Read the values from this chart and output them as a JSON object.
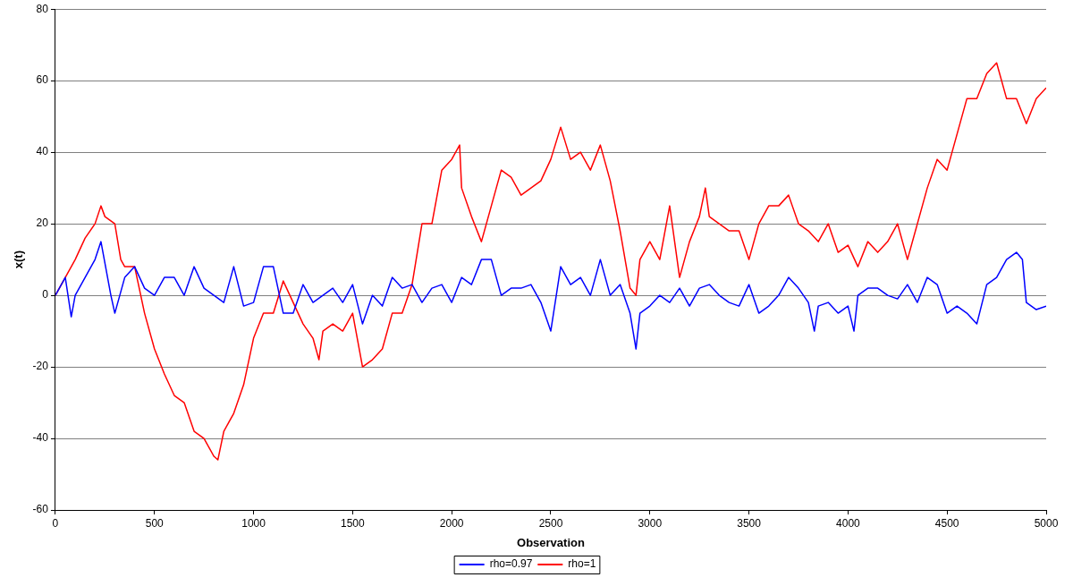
{
  "chart_data": {
    "type": "line",
    "xlabel": "Observation",
    "ylabel": "x(t)",
    "xlim": [
      0,
      5000
    ],
    "xticks": [
      0,
      500,
      1000,
      1500,
      2000,
      2500,
      3000,
      3500,
      4000,
      4500,
      5000
    ],
    "ylim": [
      -60,
      80
    ],
    "yticks": [
      -60,
      -40,
      -20,
      0,
      20,
      40,
      60,
      80
    ],
    "grid": "y",
    "legend": "bottom",
    "marker": "none",
    "line_style": "solid",
    "series": [
      {
        "name": "rho=0.97",
        "color": "#0000ff",
        "x": [
          0,
          50,
          80,
          100,
          150,
          200,
          230,
          280,
          300,
          350,
          400,
          450,
          500,
          550,
          600,
          650,
          700,
          750,
          800,
          850,
          900,
          950,
          1000,
          1050,
          1100,
          1150,
          1200,
          1250,
          1300,
          1350,
          1400,
          1450,
          1500,
          1550,
          1600,
          1650,
          1700,
          1750,
          1800,
          1850,
          1900,
          1950,
          2000,
          2050,
          2100,
          2150,
          2200,
          2250,
          2300,
          2350,
          2400,
          2450,
          2500,
          2550,
          2600,
          2650,
          2700,
          2750,
          2800,
          2850,
          2900,
          2930,
          2950,
          3000,
          3050,
          3100,
          3150,
          3200,
          3250,
          3300,
          3350,
          3400,
          3450,
          3500,
          3550,
          3600,
          3650,
          3700,
          3750,
          3800,
          3830,
          3850,
          3900,
          3950,
          4000,
          4030,
          4050,
          4100,
          4150,
          4200,
          4250,
          4300,
          4350,
          4400,
          4450,
          4500,
          4550,
          4600,
          4650,
          4700,
          4750,
          4800,
          4850,
          4880,
          4900,
          4950,
          5000
        ],
        "values": [
          0,
          5,
          -6,
          0,
          5,
          10,
          15,
          0,
          -5,
          5,
          8,
          2,
          0,
          5,
          5,
          0,
          8,
          2,
          0,
          -2,
          8,
          -3,
          -2,
          8,
          8,
          -5,
          -5,
          3,
          -2,
          0,
          2,
          -2,
          3,
          -8,
          0,
          -3,
          5,
          2,
          3,
          -2,
          2,
          3,
          -2,
          5,
          3,
          10,
          10,
          0,
          2,
          2,
          3,
          -2,
          -10,
          8,
          3,
          5,
          0,
          10,
          0,
          3,
          -5,
          -15,
          -5,
          -3,
          0,
          -2,
          2,
          -3,
          2,
          3,
          0,
          -2,
          -3,
          3,
          -5,
          -3,
          0,
          5,
          2,
          -2,
          -10,
          -3,
          -2,
          -5,
          -3,
          -10,
          0,
          2,
          2,
          0,
          -1,
          3,
          -2,
          5,
          3,
          -5,
          -3,
          -5,
          -8,
          3,
          5,
          10,
          12,
          10,
          -2,
          -4,
          -3
        ]
      },
      {
        "name": "rho=1",
        "color": "#ff0000",
        "x": [
          0,
          50,
          100,
          150,
          200,
          230,
          250,
          300,
          330,
          350,
          400,
          450,
          500,
          550,
          600,
          650,
          700,
          750,
          800,
          820,
          850,
          900,
          950,
          1000,
          1050,
          1100,
          1150,
          1200,
          1250,
          1300,
          1330,
          1350,
          1400,
          1450,
          1500,
          1550,
          1600,
          1650,
          1700,
          1750,
          1800,
          1850,
          1900,
          1950,
          2000,
          2040,
          2050,
          2100,
          2150,
          2200,
          2250,
          2300,
          2350,
          2400,
          2450,
          2500,
          2550,
          2600,
          2650,
          2700,
          2750,
          2800,
          2850,
          2900,
          2930,
          2950,
          3000,
          3050,
          3100,
          3150,
          3200,
          3250,
          3280,
          3300,
          3350,
          3400,
          3450,
          3500,
          3550,
          3600,
          3650,
          3700,
          3750,
          3800,
          3850,
          3900,
          3950,
          4000,
          4050,
          4100,
          4150,
          4200,
          4250,
          4300,
          4350,
          4400,
          4450,
          4500,
          4550,
          4600,
          4650,
          4700,
          4750,
          4800,
          4850,
          4900,
          4950,
          5000
        ],
        "values": [
          0,
          5,
          10,
          16,
          20,
          25,
          22,
          20,
          10,
          8,
          8,
          -5,
          -15,
          -22,
          -28,
          -30,
          -38,
          -40,
          -45,
          -46,
          -38,
          -33,
          -25,
          -12,
          -5,
          -5,
          4,
          -2,
          -8,
          -12,
          -18,
          -10,
          -8,
          -10,
          -5,
          -20,
          -18,
          -15,
          -5,
          -5,
          3,
          20,
          20,
          35,
          38,
          42,
          30,
          22,
          15,
          25,
          35,
          33,
          28,
          30,
          32,
          38,
          47,
          38,
          40,
          35,
          42,
          32,
          18,
          2,
          0,
          10,
          15,
          10,
          25,
          5,
          15,
          22,
          30,
          22,
          20,
          18,
          18,
          10,
          20,
          25,
          25,
          28,
          20,
          18,
          15,
          20,
          12,
          14,
          8,
          15,
          12,
          15,
          20,
          10,
          20,
          30,
          38,
          35,
          45,
          55,
          55,
          62,
          65,
          55,
          55,
          48,
          55,
          58
        ]
      }
    ]
  }
}
